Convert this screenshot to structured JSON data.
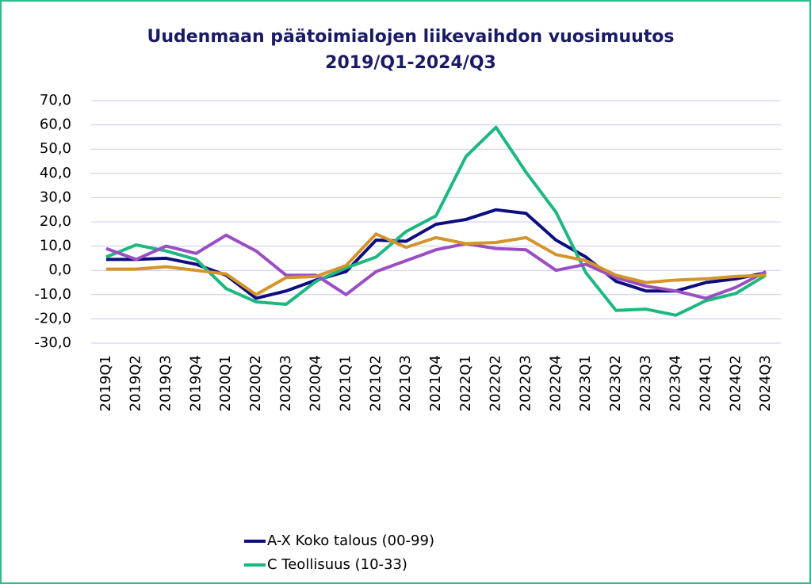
{
  "chart_data": {
    "type": "line",
    "title": [
      "Uudenmaan päätoimialojen liikevaihdon vuosimuutos",
      "2019/Q1-2024/Q3"
    ],
    "categories": [
      "2019Q1",
      "2019Q2",
      "2019Q3",
      "2019Q4",
      "2020Q1",
      "2020Q2",
      "2020Q3",
      "2020Q4",
      "2021Q1",
      "2021Q2",
      "2021Q3",
      "2021Q4",
      "2022Q1",
      "2022Q2",
      "2022Q3",
      "2022Q4",
      "2023Q1",
      "2023Q2",
      "2023Q3",
      "2023Q4",
      "2024Q1",
      "2024Q2",
      "2024Q3"
    ],
    "series": [
      {
        "name": "A-X Koko talous (00-99)",
        "color": "#0d0d80",
        "values": [
          4.5,
          4.5,
          5,
          2.5,
          -2,
          -11.5,
          -8.5,
          -4,
          -0.5,
          12.5,
          12,
          19,
          21,
          25,
          23.5,
          12.5,
          5.5,
          -4.5,
          -8.5,
          -8.5,
          -5,
          -3.5,
          -1
        ]
      },
      {
        "name": "C Teollisuus (10-33)",
        "color": "#1db87f",
        "values": [
          5.5,
          10.5,
          8,
          4.5,
          -7.5,
          -13,
          -14,
          -4.5,
          1,
          5.5,
          16,
          22.5,
          47,
          59,
          40.5,
          24,
          -1,
          -16.5,
          -16,
          -18.5,
          -12.5,
          -9.5,
          -2
        ]
      },
      {
        "color": "#9b4ec4",
        "values": [
          9,
          4.5,
          10,
          7,
          14.5,
          8,
          -2,
          -2,
          -10,
          -0.5,
          4,
          8.5,
          11,
          9,
          8.5,
          0,
          2.5,
          -3,
          -6.5,
          -8.5,
          -11.5,
          -7,
          -0.5
        ]
      },
      {
        "color": "#d4942a",
        "values": [
          0.5,
          0.5,
          1.5,
          0,
          -1.5,
          -10,
          -3,
          -2.5,
          2,
          15,
          9.5,
          13.5,
          11,
          11.5,
          13.5,
          6.5,
          4,
          -2,
          -5,
          -4,
          -3.5,
          -2.5,
          -2
        ]
      }
    ],
    "ylim": [
      -30,
      70
    ],
    "yticks": [
      {
        "value": -30,
        "label": "-30,0"
      },
      {
        "value": -20,
        "label": "-20,0"
      },
      {
        "value": -10,
        "label": "-10,0"
      },
      {
        "value": 0,
        "label": "0,0"
      },
      {
        "value": 10,
        "label": "10,0"
      },
      {
        "value": 20,
        "label": "20,0"
      },
      {
        "value": 30,
        "label": "30,0"
      },
      {
        "value": 40,
        "label": "40,0"
      },
      {
        "value": 50,
        "label": "50,0"
      },
      {
        "value": 60,
        "label": "60,0"
      },
      {
        "value": 70,
        "label": "70,0"
      }
    ],
    "grid": true
  }
}
